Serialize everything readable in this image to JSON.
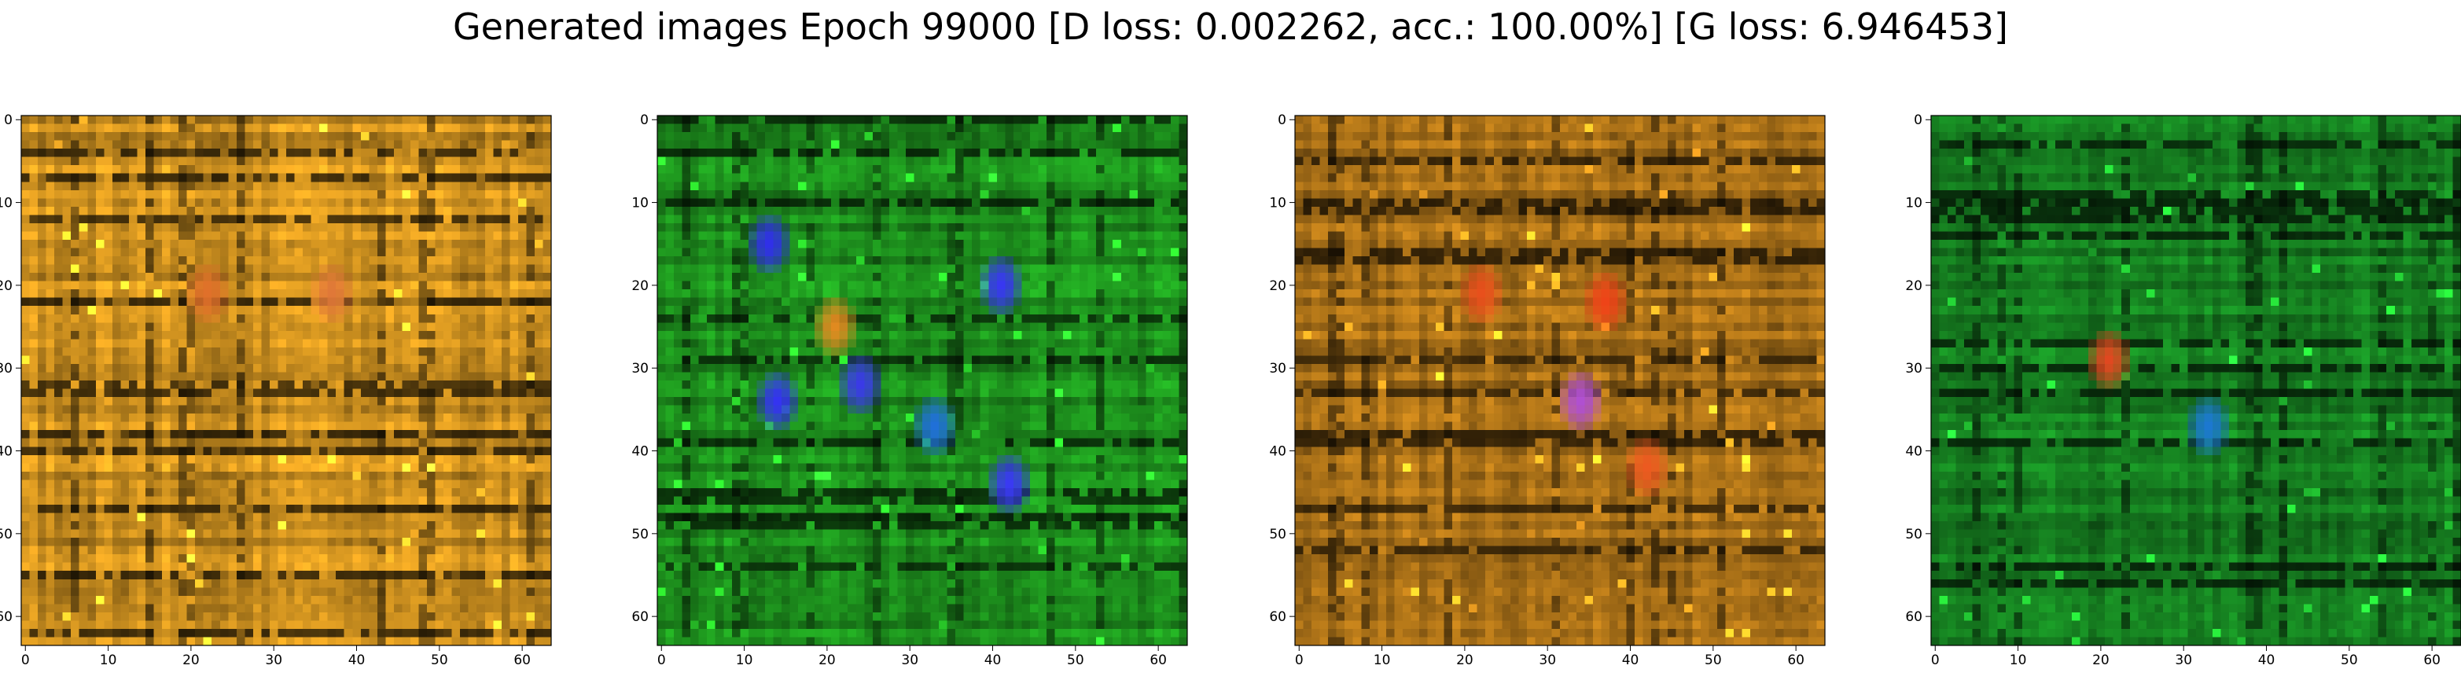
{
  "suptitle": "Generated images Epoch 99000 [D loss: 0.002262, acc.: 100.00%] [G loss: 6.946453]",
  "chart_data": [
    {
      "type": "heatmap",
      "title": "",
      "xlabel": "",
      "ylabel": "",
      "xlim": [
        -0.5,
        63.5
      ],
      "ylim": [
        63.5,
        -0.5
      ],
      "grid": false,
      "x_ticks": [
        0,
        10,
        20,
        30,
        40,
        50,
        60
      ],
      "y_ticks": [
        0,
        10,
        20,
        30,
        40,
        50,
        60
      ],
      "x_tick_labels": [
        "0",
        "10",
        "20",
        "30",
        "40",
        "50",
        "60"
      ],
      "y_tick_labels": [
        "0",
        "10",
        "20",
        "30",
        "40",
        "50",
        "60"
      ],
      "dominant_color": "#c48a1e",
      "highlights": [
        {
          "x": 22,
          "y": 21,
          "color": "#e0702a"
        },
        {
          "x": 37,
          "y": 21,
          "color": "#e07838"
        }
      ]
    },
    {
      "type": "heatmap",
      "title": "",
      "xlabel": "",
      "ylabel": "",
      "xlim": [
        -0.5,
        63.5
      ],
      "ylim": [
        63.5,
        -0.5
      ],
      "grid": false,
      "x_ticks": [
        0,
        10,
        20,
        30,
        40,
        50,
        60
      ],
      "y_ticks": [
        0,
        10,
        20,
        30,
        40,
        50,
        60
      ],
      "x_tick_labels": [
        "0",
        "10",
        "20",
        "30",
        "40",
        "50",
        "60"
      ],
      "y_tick_labels": [
        "0",
        "10",
        "20",
        "30",
        "40",
        "50",
        "60"
      ],
      "dominant_color": "#1c8a1c",
      "highlights": [
        {
          "x": 13,
          "y": 15,
          "color": "#3030e8"
        },
        {
          "x": 14,
          "y": 34,
          "color": "#3434f0"
        },
        {
          "x": 24,
          "y": 32,
          "color": "#3a3ae6"
        },
        {
          "x": 41,
          "y": 20,
          "color": "#3838f0"
        },
        {
          "x": 42,
          "y": 44,
          "color": "#3a3af2"
        },
        {
          "x": 21,
          "y": 25,
          "color": "#e08a20"
        },
        {
          "x": 33,
          "y": 37,
          "color": "#2070d8"
        }
      ]
    },
    {
      "type": "heatmap",
      "title": "",
      "xlabel": "",
      "ylabel": "",
      "xlim": [
        -0.5,
        63.5
      ],
      "ylim": [
        63.5,
        -0.5
      ],
      "grid": false,
      "x_ticks": [
        0,
        10,
        20,
        30,
        40,
        50,
        60
      ],
      "y_ticks": [
        0,
        10,
        20,
        30,
        40,
        50,
        60
      ],
      "x_tick_labels": [
        "0",
        "10",
        "20",
        "30",
        "40",
        "50",
        "60"
      ],
      "y_tick_labels": [
        "0",
        "10",
        "20",
        "30",
        "40",
        "50",
        "60"
      ],
      "dominant_color": "#a06a16",
      "highlights": [
        {
          "x": 22,
          "y": 21,
          "color": "#e8501c"
        },
        {
          "x": 37,
          "y": 22,
          "color": "#ee4418"
        },
        {
          "x": 42,
          "y": 42,
          "color": "#ec5a20"
        },
        {
          "x": 34,
          "y": 34,
          "color": "#b050d0"
        }
      ]
    },
    {
      "type": "heatmap",
      "title": "",
      "xlabel": "",
      "ylabel": "",
      "xlim": [
        -0.5,
        63.5
      ],
      "ylim": [
        63.5,
        -0.5
      ],
      "grid": false,
      "x_ticks": [
        0,
        10,
        20,
        30,
        40,
        50,
        60
      ],
      "y_ticks": [
        0,
        10,
        20,
        30,
        40,
        50,
        60
      ],
      "x_tick_labels": [
        "0",
        "10",
        "20",
        "30",
        "40",
        "50",
        "60"
      ],
      "y_tick_labels": [
        "0",
        "10",
        "20",
        "30",
        "40",
        "50",
        "60"
      ],
      "dominant_color": "#157a1f",
      "highlights": [
        {
          "x": 21,
          "y": 29,
          "color": "#e04820"
        },
        {
          "x": 33,
          "y": 37,
          "color": "#1c78d0"
        }
      ]
    }
  ]
}
